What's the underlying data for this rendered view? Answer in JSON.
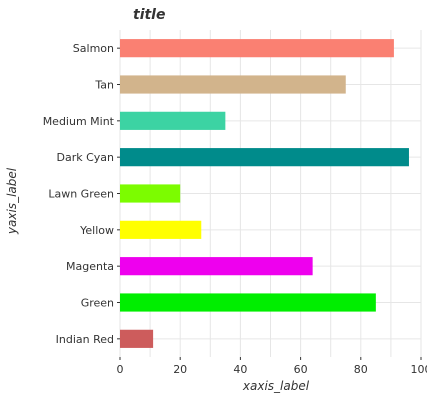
{
  "chart_data": {
    "type": "bar",
    "orientation": "horizontal",
    "title": "title",
    "xlabel": "xaxis_label",
    "ylabel": "yaxis_label",
    "xlim": [
      0,
      100
    ],
    "xticks": [
      "0",
      "20",
      "40",
      "60",
      "80",
      "100"
    ],
    "grid": true,
    "categories": [
      "Indian Red",
      "Green",
      "Magenta",
      "Yellow",
      "Lawn Green",
      "Dark Cyan",
      "Medium Mint",
      "Tan",
      "Salmon"
    ],
    "values": [
      11,
      85,
      64,
      27,
      20,
      96,
      35,
      75,
      91
    ],
    "colors": [
      "#cd5c5c",
      "#00ee00",
      "#ee00ee",
      "#ffff00",
      "#7cfc00",
      "#008b8b",
      "#3cd3a3",
      "#d2b48c",
      "#fa8072"
    ]
  }
}
